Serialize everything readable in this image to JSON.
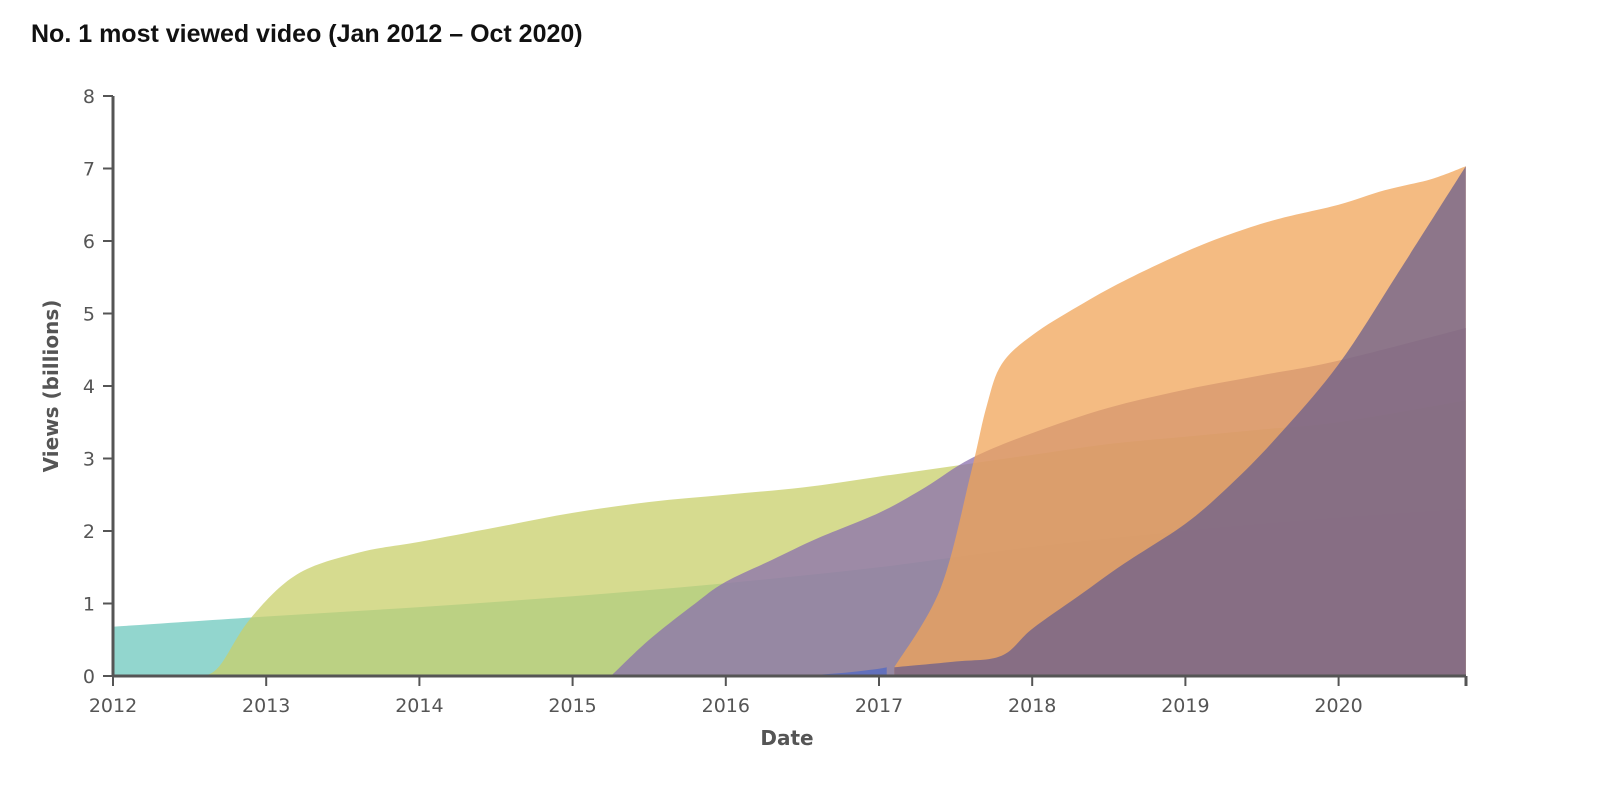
{
  "title": "No. 1 most viewed video (Jan 2012 – Oct 2020)",
  "chart_data": {
    "type": "area",
    "title": "No. 1 most viewed video (Jan 2012 – Oct 2020)",
    "xlabel": "Date",
    "ylabel": "Views (billions)",
    "xlim": [
      2012.0,
      2020.83
    ],
    "ylim": [
      0,
      8
    ],
    "x_ticks": [
      "2012",
      "2013",
      "2014",
      "2015",
      "2016",
      "2017",
      "2018",
      "2019",
      "2020"
    ],
    "y_ticks": [
      "0",
      "1",
      "2",
      "3",
      "4",
      "5",
      "6",
      "7",
      "8"
    ],
    "grid": false,
    "legend": "none",
    "series": [
      {
        "color": "#7fcfc6",
        "x": [
          2012.0,
          2013.0,
          2014.0,
          2015.0,
          2016.0,
          2017.0,
          2018.0,
          2019.0,
          2020.0,
          2020.83
        ],
        "y": [
          0.68,
          0.82,
          0.95,
          1.1,
          1.28,
          1.5,
          1.78,
          2.0,
          2.18,
          2.3
        ]
      },
      {
        "color": "#c8cf6a",
        "x": [
          2012.6,
          2012.7,
          2012.9,
          2013.2,
          2013.6,
          2014.0,
          2014.5,
          2015.0,
          2015.5,
          2016.0,
          2016.5,
          2017.0,
          2017.5,
          2018.0,
          2018.5,
          2019.0,
          2019.5,
          2020.0,
          2020.83
        ],
        "y": [
          0.0,
          0.15,
          0.8,
          1.4,
          1.7,
          1.85,
          2.05,
          2.25,
          2.4,
          2.5,
          2.6,
          2.75,
          2.9,
          3.05,
          3.2,
          3.3,
          3.4,
          3.5,
          3.8
        ]
      },
      {
        "color": "#8a6fae",
        "x": [
          2015.25,
          2015.5,
          2015.8,
          2016.0,
          2016.3,
          2016.6,
          2017.0,
          2017.3,
          2017.6,
          2018.0,
          2018.5,
          2019.0,
          2019.5,
          2020.0,
          2020.83
        ],
        "y": [
          0.0,
          0.5,
          1.0,
          1.3,
          1.6,
          1.9,
          2.25,
          2.6,
          3.0,
          3.35,
          3.7,
          3.95,
          4.15,
          4.35,
          4.8
        ]
      },
      {
        "color": "#5068c4",
        "x": [
          2016.5,
          2016.8,
          2017.0,
          2017.05
        ],
        "y": [
          0.0,
          0.05,
          0.1,
          0.12
        ]
      },
      {
        "color": "#f0a458",
        "x": [
          2017.1,
          2017.4,
          2017.6,
          2017.7,
          2017.8,
          2018.0,
          2018.3,
          2018.6,
          2019.0,
          2019.3,
          2019.6,
          2020.0,
          2020.3,
          2020.6,
          2020.83
        ],
        "y": [
          0.12,
          1.2,
          2.8,
          3.7,
          4.3,
          4.7,
          5.1,
          5.45,
          5.85,
          6.1,
          6.3,
          6.5,
          6.7,
          6.85,
          7.03
        ]
      },
      {
        "color": "#6b5f8c",
        "x": [
          2017.1,
          2017.5,
          2017.8,
          2018.0,
          2018.3,
          2018.6,
          2019.0,
          2019.3,
          2019.6,
          2020.0,
          2020.4,
          2020.83
        ],
        "y": [
          0.12,
          0.2,
          0.28,
          0.65,
          1.1,
          1.55,
          2.1,
          2.65,
          3.3,
          4.3,
          5.6,
          7.03
        ]
      }
    ]
  }
}
